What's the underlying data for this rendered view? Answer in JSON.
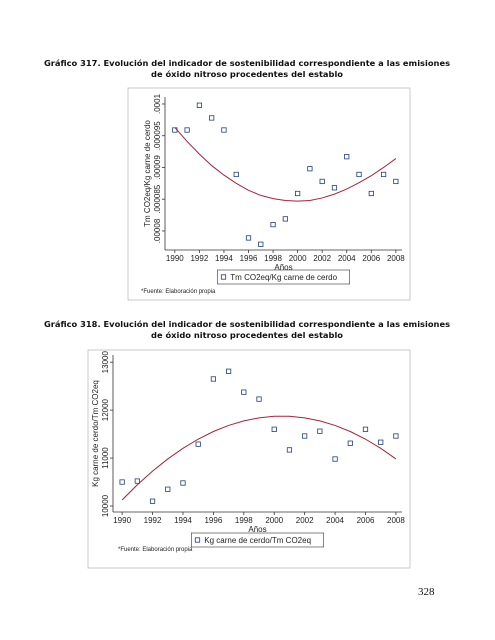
{
  "chart_data": [
    {
      "type": "scatter",
      "title": "Gráfico 317. Evolución del indicador de sostenibilidad correspondiente a las emisiones de óxido nitroso procedentes del establo",
      "x": [
        1990,
        1991,
        1992,
        1993,
        1994,
        1995,
        1996,
        1997,
        1998,
        1999,
        2000,
        2001,
        2002,
        2003,
        2004,
        2005,
        2006,
        2007,
        2008
      ],
      "series": [
        {
          "name": "Tm CO2eq/Kg carne de cerdo",
          "color": "#1f3f78",
          "marker": "square",
          "values": [
            9.59e-05,
            9.59e-05,
            9.98e-05,
            9.78e-05,
            9.59e-05,
            8.89e-05,
            7.89e-05,
            7.79e-05,
            8.1e-05,
            8.19e-05,
            8.59e-05,
            8.98e-05,
            8.78e-05,
            8.68e-05,
            9.17e-05,
            8.89e-05,
            8.59e-05,
            8.89e-05,
            8.78e-05
          ]
        },
        {
          "color": "#a3243b",
          "style": "line",
          "values": [
            9.63e-05,
            9.41e-05,
            9.21e-05,
            9.03e-05,
            8.88e-05,
            8.75e-05,
            8.64e-05,
            8.56e-05,
            8.51e-05,
            8.48e-05,
            8.47e-05,
            8.48e-05,
            8.52e-05,
            8.58e-05,
            8.66e-05,
            8.76e-05,
            8.87e-05,
            9e-05,
            9.14e-05
          ]
        }
      ],
      "xlim": [
        1989.2,
        2008.5
      ],
      "xticks": [
        1990,
        1992,
        1994,
        1996,
        1998,
        2000,
        2002,
        2004,
        2006,
        2008
      ],
      "ylim": [
        7.7e-05,
        0.0001011
      ],
      "yticks": [
        {
          "value": 8e-05,
          "label": ".00008"
        },
        {
          "value": 8.5e-05,
          "label": ".000085"
        },
        {
          "value": 9e-05,
          "label": ".00009"
        },
        {
          "value": 9.5e-05,
          "label": ".000095"
        },
        {
          "value": 0.0001,
          "label": ".0001"
        }
      ],
      "x_label": "Años",
      "y_label": "Tm CO2eq/Kg carne de cerdo",
      "note": "*Fuente: Elaboración propia"
    },
    {
      "type": "scatter",
      "title": "Gráfico 318. Evolución del indicador de sostenibilidad correspondiente a las emisiones de óxido nitroso procedentes del establo",
      "x": [
        1990,
        1991,
        1992,
        1993,
        1994,
        1995,
        1996,
        1997,
        1998,
        1999,
        2000,
        2001,
        2002,
        2003,
        2004,
        2005,
        2006,
        2007,
        2008
      ],
      "series": [
        {
          "name": "Kg carne de cerdo/Tm CO2eq",
          "color": "#1f3f78",
          "marker": "square",
          "values": [
            10500,
            10520,
            10100,
            10350,
            10480,
            11290,
            12650,
            12810,
            12375,
            12230,
            11600,
            11170,
            11460,
            11560,
            10980,
            11310,
            11600,
            11330,
            11460
          ]
        },
        {
          "color": "#a3243b",
          "style": "line",
          "values": [
            10125,
            10443,
            10728,
            10982,
            11204,
            11395,
            11554,
            11681,
            11776,
            11839,
            11871,
            11871,
            11839,
            11776,
            11681,
            11554,
            11395,
            11204,
            10982
          ]
        }
      ],
      "xlim": [
        1989.4,
        2008.4
      ],
      "xticks": [
        1990,
        1992,
        1994,
        1996,
        1998,
        2000,
        2002,
        2004,
        2006,
        2008
      ],
      "ylim": [
        9875,
        13150
      ],
      "yticks": [
        10000,
        11000,
        12000,
        13000
      ],
      "x_label": "Años",
      "y_label": "Kg carne de cerdo/Tm CO2eq",
      "note": "*Fuente: Elaboración propia"
    }
  ],
  "page_number": "328"
}
